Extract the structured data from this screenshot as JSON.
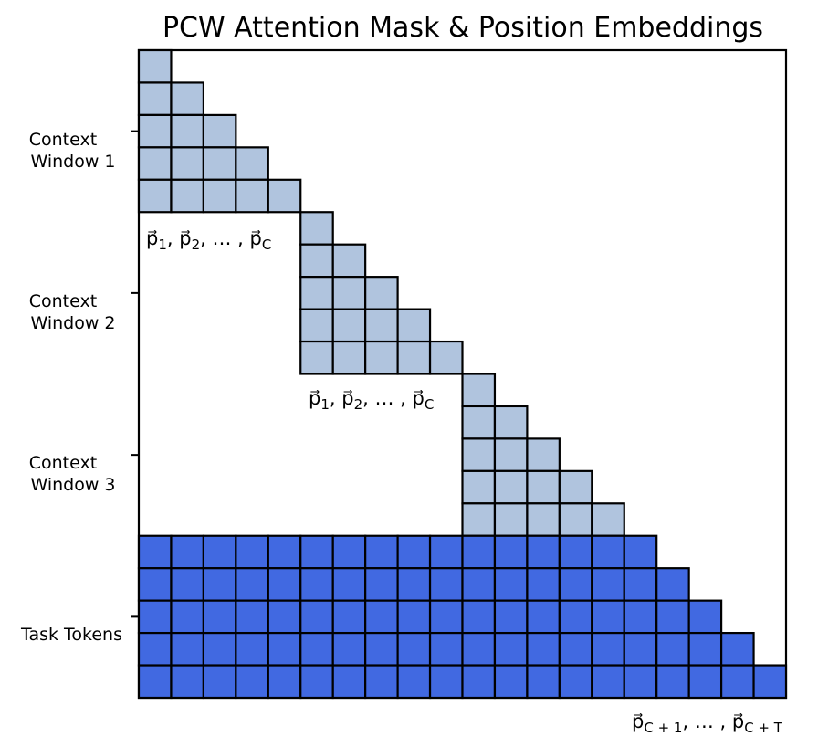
{
  "title": "PCW Attention Mask & Position Embeddings",
  "colors": {
    "context": "#b0c4de",
    "task": "#4169e1",
    "border": "#000000",
    "background": "#ffffff"
  },
  "mask": {
    "size": 20,
    "context_windows": 3,
    "window_size": 5,
    "task_tokens": 5
  },
  "y_labels": [
    {
      "lines": [
        "Context",
        "Window 1"
      ]
    },
    {
      "lines": [
        "Context",
        "Window 2"
      ]
    },
    {
      "lines": [
        "Context",
        "Window 3"
      ]
    },
    {
      "lines": [
        "Task Tokens"
      ]
    }
  ],
  "position_labels": {
    "window": "p⃗1, p⃗2, … , p⃗C",
    "task": "p⃗C + 1, … , p⃗C + T"
  }
}
